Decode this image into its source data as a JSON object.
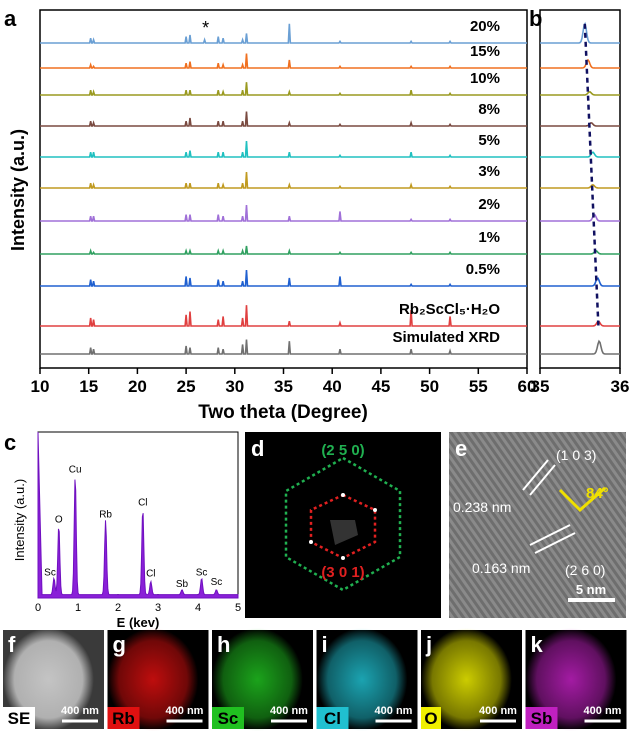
{
  "panels": {
    "a": {
      "label": "a",
      "xlabel": "Two theta (Degree)",
      "ylabel": "Intensity (a.u.)",
      "xlim": [
        10,
        60
      ],
      "xticks": [
        10,
        15,
        20,
        25,
        30,
        35,
        40,
        45,
        50,
        55,
        60
      ],
      "annotation": "*",
      "annotation_x": 27.0,
      "peak_positions": [
        15.2,
        15.5,
        25.0,
        25.4,
        26.9,
        28.3,
        28.8,
        30.8,
        31.2,
        35.6,
        40.8,
        48.1,
        52.1
      ],
      "series": [
        {
          "name": "20%",
          "color": "#6a9fd4",
          "heights": [
            0.3,
            0.2,
            0.4,
            0.5,
            0.2,
            0.4,
            0.3,
            0.2,
            0.6,
            1.2,
            0.1,
            0.1,
            0.1
          ]
        },
        {
          "name": "15%",
          "color": "#f07020",
          "heights": [
            0.2,
            0.1,
            0.3,
            0.4,
            0,
            0.3,
            0.2,
            0.2,
            0.9,
            0.5,
            0.1,
            0.1,
            0.1
          ]
        },
        {
          "name": "10%",
          "color": "#9a9a20",
          "heights": [
            0.3,
            0.2,
            0.3,
            0.3,
            0,
            0.3,
            0.2,
            0.3,
            0.8,
            0.2,
            0.1,
            0.3,
            0.1
          ]
        },
        {
          "name": "8%",
          "color": "#7a4a40",
          "heights": [
            0.3,
            0.2,
            0.3,
            0.5,
            0,
            0.3,
            0.3,
            0.3,
            0.9,
            0.2,
            0.1,
            0.2,
            0.1
          ]
        },
        {
          "name": "5%",
          "color": "#20c0c0",
          "heights": [
            0.3,
            0.3,
            0.3,
            0.4,
            0,
            0.3,
            0.3,
            0.3,
            1.0,
            0.3,
            0.1,
            0.3,
            0.1
          ]
        },
        {
          "name": "3%",
          "color": "#c09a20",
          "heights": [
            0.3,
            0.2,
            0.3,
            0.3,
            0,
            0.3,
            0.2,
            0.3,
            1.0,
            0.2,
            0.1,
            0.2,
            0.1
          ]
        },
        {
          "name": "2%",
          "color": "#a070d8",
          "heights": [
            0.3,
            0.3,
            0.4,
            0.4,
            0,
            0.4,
            0.3,
            0.3,
            1.0,
            0.3,
            0.6,
            0.1,
            0.1
          ]
        },
        {
          "name": "1%",
          "color": "#30a060",
          "heights": [
            0.2,
            0.1,
            0.2,
            0.2,
            0,
            0.2,
            0.2,
            0.2,
            0.5,
            0.2,
            0.1,
            0.1,
            0.1
          ]
        },
        {
          "name": "0.5%",
          "color": "#2060d0",
          "heights": [
            0.4,
            0.3,
            0.6,
            0.5,
            0,
            0.4,
            0.3,
            0.3,
            1.0,
            0.5,
            0.6,
            0.1,
            0.1
          ]
        },
        {
          "name": "Rb₂ScCl₅·H₂O",
          "color": "#e04040",
          "heights": [
            0.5,
            0.4,
            0.7,
            0.9,
            0,
            0.4,
            0.6,
            0.5,
            1.3,
            0.3,
            0.2,
            1.0,
            0.6
          ]
        },
        {
          "name": "Simulated XRD",
          "color": "#707070",
          "heights": [
            0.4,
            0.3,
            0.5,
            0.4,
            0,
            0.4,
            0.3,
            0.6,
            0.9,
            0.8,
            0.3,
            0.3,
            0.2
          ]
        }
      ]
    },
    "b": {
      "label": "b",
      "xlim": [
        35,
        36
      ],
      "xticks": [
        35,
        36
      ],
      "peak_centers": [
        35.56,
        35.6,
        35.62,
        35.64,
        35.66,
        35.66,
        35.68,
        35.7,
        35.72,
        35.73,
        35.74
      ],
      "peak_heights": [
        1.2,
        0.5,
        0.2,
        0.2,
        0.3,
        0.2,
        0.4,
        0.2,
        0.5,
        0.3,
        0.8
      ]
    },
    "c": {
      "label": "c",
      "xlabel": "E (kev)",
      "ylabel": "Intensity (a.u.)",
      "xlim": [
        0,
        5
      ],
      "xticks": [
        0,
        1,
        2,
        3,
        4,
        5
      ],
      "peaks": [
        {
          "label": "Sc",
          "x": 0.4,
          "h": 0.1
        },
        {
          "label": "O",
          "x": 0.52,
          "h": 0.42
        },
        {
          "label": "Cu",
          "x": 0.93,
          "h": 0.72
        },
        {
          "label": "Rb",
          "x": 1.69,
          "h": 0.45
        },
        {
          "label": "Cl",
          "x": 2.62,
          "h": 0.52
        },
        {
          "label": "Cl",
          "x": 2.82,
          "h": 0.08
        },
        {
          "label": "Sb",
          "x": 3.6,
          "h": 0.03
        },
        {
          "label": "Sc",
          "x": 4.09,
          "h": 0.1
        },
        {
          "label": "Sc",
          "x": 4.46,
          "h": 0.03
        }
      ]
    },
    "d": {
      "label": "d",
      "outer": "(2 5 0)",
      "inner": "(3 0 1)"
    },
    "e": {
      "label": "e",
      "plane1": "(1 0 3)",
      "d1": "0.238 nm",
      "angle": "84°",
      "d2": "0.163 nm",
      "plane2": "(2 6 0)",
      "scale": "5 nm"
    },
    "maps": [
      {
        "letter": "f",
        "element": "SE",
        "color": "#ffffff",
        "scale": "400 nm"
      },
      {
        "letter": "g",
        "element": "Rb",
        "color": "#e01010",
        "scale": "400 nm"
      },
      {
        "letter": "h",
        "element": "Sc",
        "color": "#20c020",
        "scale": "400 nm"
      },
      {
        "letter": "i",
        "element": "Cl",
        "color": "#20c0d0",
        "scale": "400 nm"
      },
      {
        "letter": "j",
        "element": "O",
        "color": "#f0f000",
        "scale": "400 nm"
      },
      {
        "letter": "k",
        "element": "Sb",
        "color": "#c020c0",
        "scale": "400 nm"
      }
    ]
  }
}
